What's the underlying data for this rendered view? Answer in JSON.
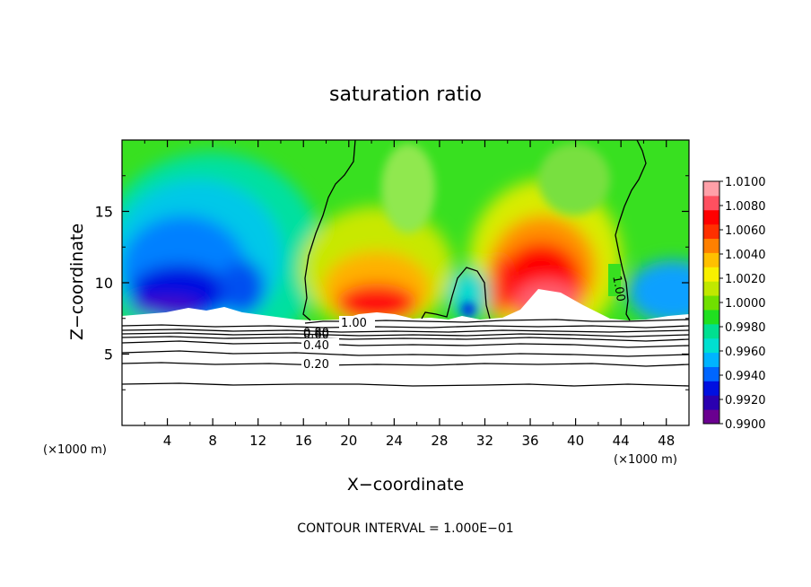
{
  "chart_data": {
    "type": "heatmap",
    "title": "saturation ratio",
    "xlabel": "X−coordinate",
    "ylabel": "Z−coordinate",
    "x_units": "(×1000 m)",
    "y_units": "(×1000 m)",
    "xlim": [
      0,
      50
    ],
    "ylim": [
      0,
      20
    ],
    "x_ticks": [
      4,
      8,
      12,
      16,
      20,
      24,
      28,
      32,
      36,
      40,
      44,
      48
    ],
    "y_ticks": [
      5,
      10,
      15
    ],
    "footer": "CONTOUR INTERVAL = 1.000E−01",
    "colorbar": {
      "labels": [
        "1.0100",
        "1.0080",
        "1.0060",
        "1.0040",
        "1.0020",
        "1.0000",
        "0.9980",
        "0.9960",
        "0.9940",
        "0.9920",
        "0.9900"
      ],
      "min": 0.99,
      "max": 1.01,
      "colors": [
        "#6a0090",
        "#2a00b0",
        "#0010e0",
        "#0066ff",
        "#00b4ff",
        "#00e0d0",
        "#00e090",
        "#20e020",
        "#70e000",
        "#c0e800",
        "#f8f000",
        "#ffc000",
        "#ff8000",
        "#ff3000",
        "#ff0000",
        "#ff5060",
        "#ffa0a8"
      ]
    },
    "contour_labels": [
      "1.00",
      "1.00",
      "0.80",
      "0.60",
      "0.40",
      "0.20"
    ]
  }
}
